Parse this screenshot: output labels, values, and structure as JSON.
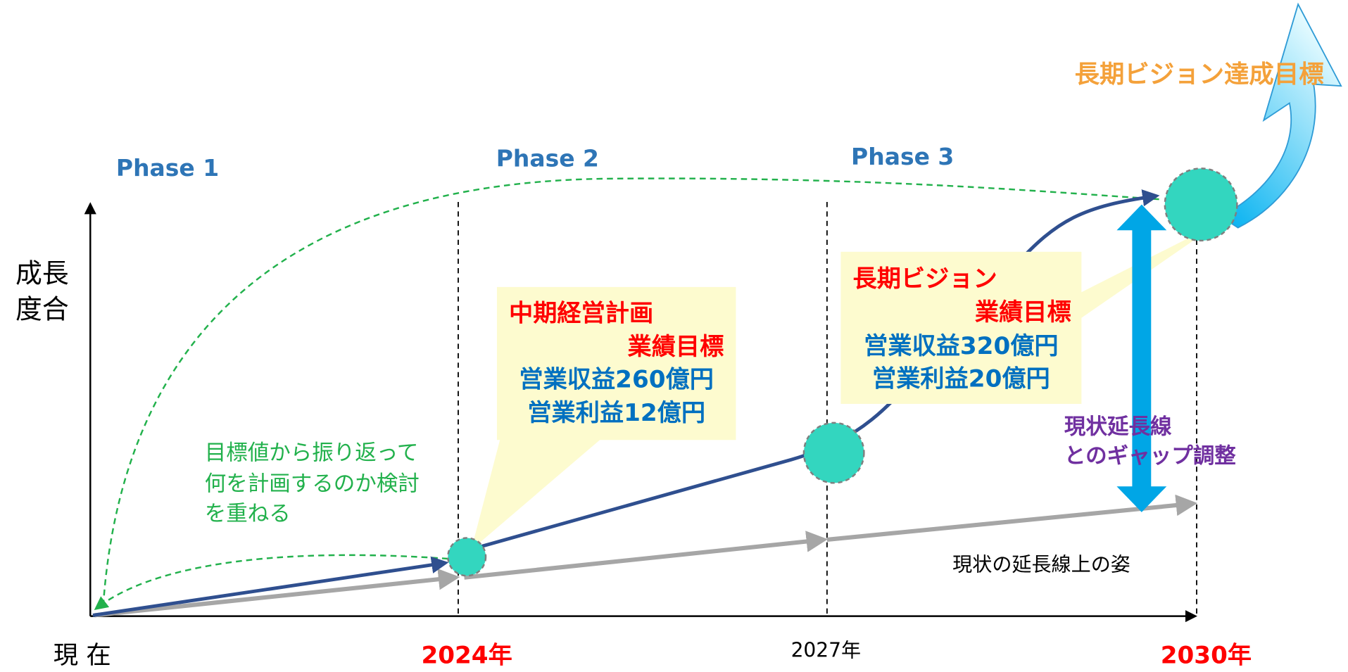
{
  "phases": [
    "Phase 1",
    "Phase 2",
    "Phase 3"
  ],
  "y_axis_label": [
    "成長",
    "度合"
  ],
  "x_labels": {
    "start": "現 在",
    "y2024": "2024年",
    "y2027": "2027年",
    "y2030": "2030年"
  },
  "goal_label": "長期ビジョン達成目標",
  "mid_plan": {
    "title": "中期経営計画",
    "subtitle": "業績目標",
    "lines": [
      "営業収益260億円",
      "営業利益12億円"
    ]
  },
  "long_vision": {
    "title": "長期ビジョン",
    "subtitle": "業績目標",
    "lines": [
      "営業収益320億円",
      "営業利益20億円"
    ]
  },
  "backcast_note": [
    "目標値から振り返って",
    "何を計画するのか検討",
    "を重ねる"
  ],
  "gap_note": [
    "現状延長線",
    "とのギャップ調整"
  ],
  "status_quo_label": "現状の延長線上の姿"
}
